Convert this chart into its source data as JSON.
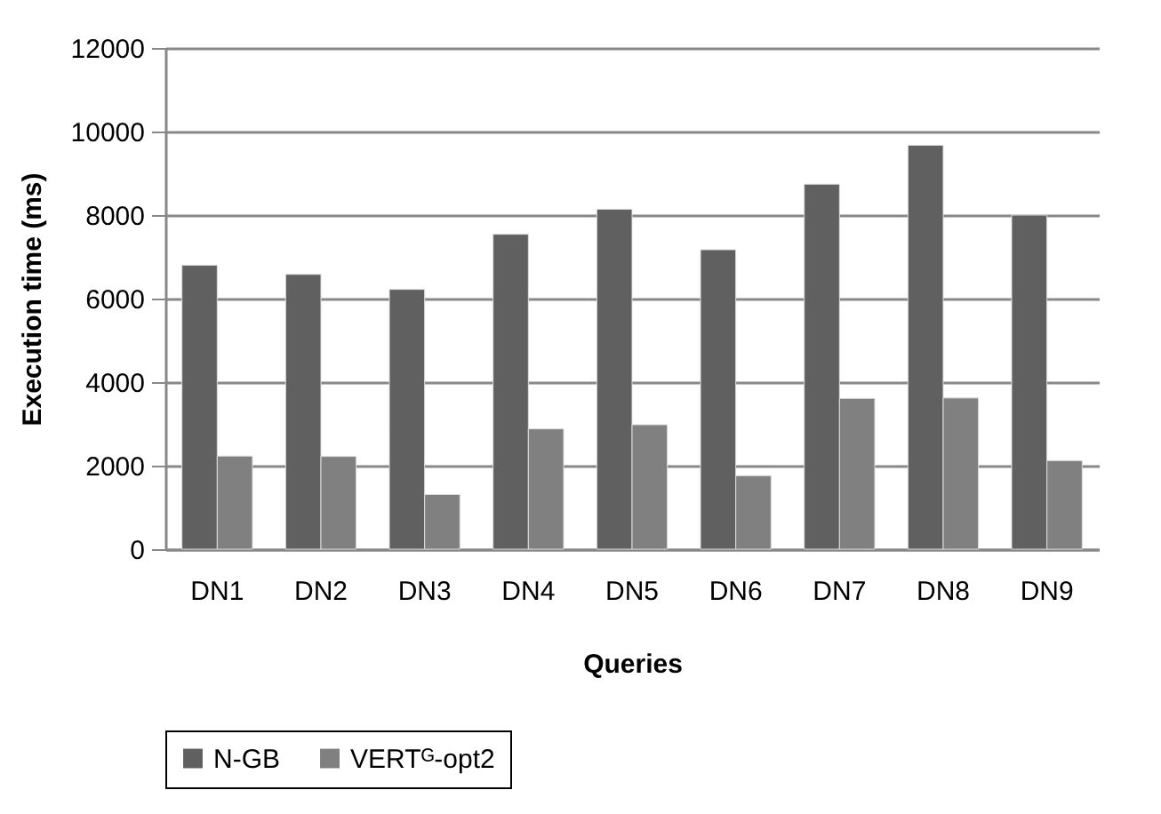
{
  "chart_data": {
    "type": "bar",
    "xlabel": "Queries",
    "ylabel": "Execution time (ms)",
    "categories": [
      "DN1",
      "DN2",
      "DN3",
      "DN4",
      "DN5",
      "DN6",
      "DN7",
      "DN8",
      "DN9"
    ],
    "series": [
      {
        "name": "N-GB",
        "color": "#606060",
        "values": [
          6800,
          6580,
          6220,
          7540,
          8140,
          7170,
          8740,
          9670,
          8000
        ]
      },
      {
        "name": "VERTᴳ-opt2",
        "color": "#808080",
        "values": [
          2230,
          2220,
          1310,
          2880,
          2980,
          1760,
          3610,
          3620,
          2120
        ]
      }
    ],
    "ylim": [
      0,
      12000
    ],
    "yticks": [
      0,
      2000,
      4000,
      6000,
      8000,
      10000,
      12000
    ],
    "grid": "y",
    "legend": "bottom"
  }
}
